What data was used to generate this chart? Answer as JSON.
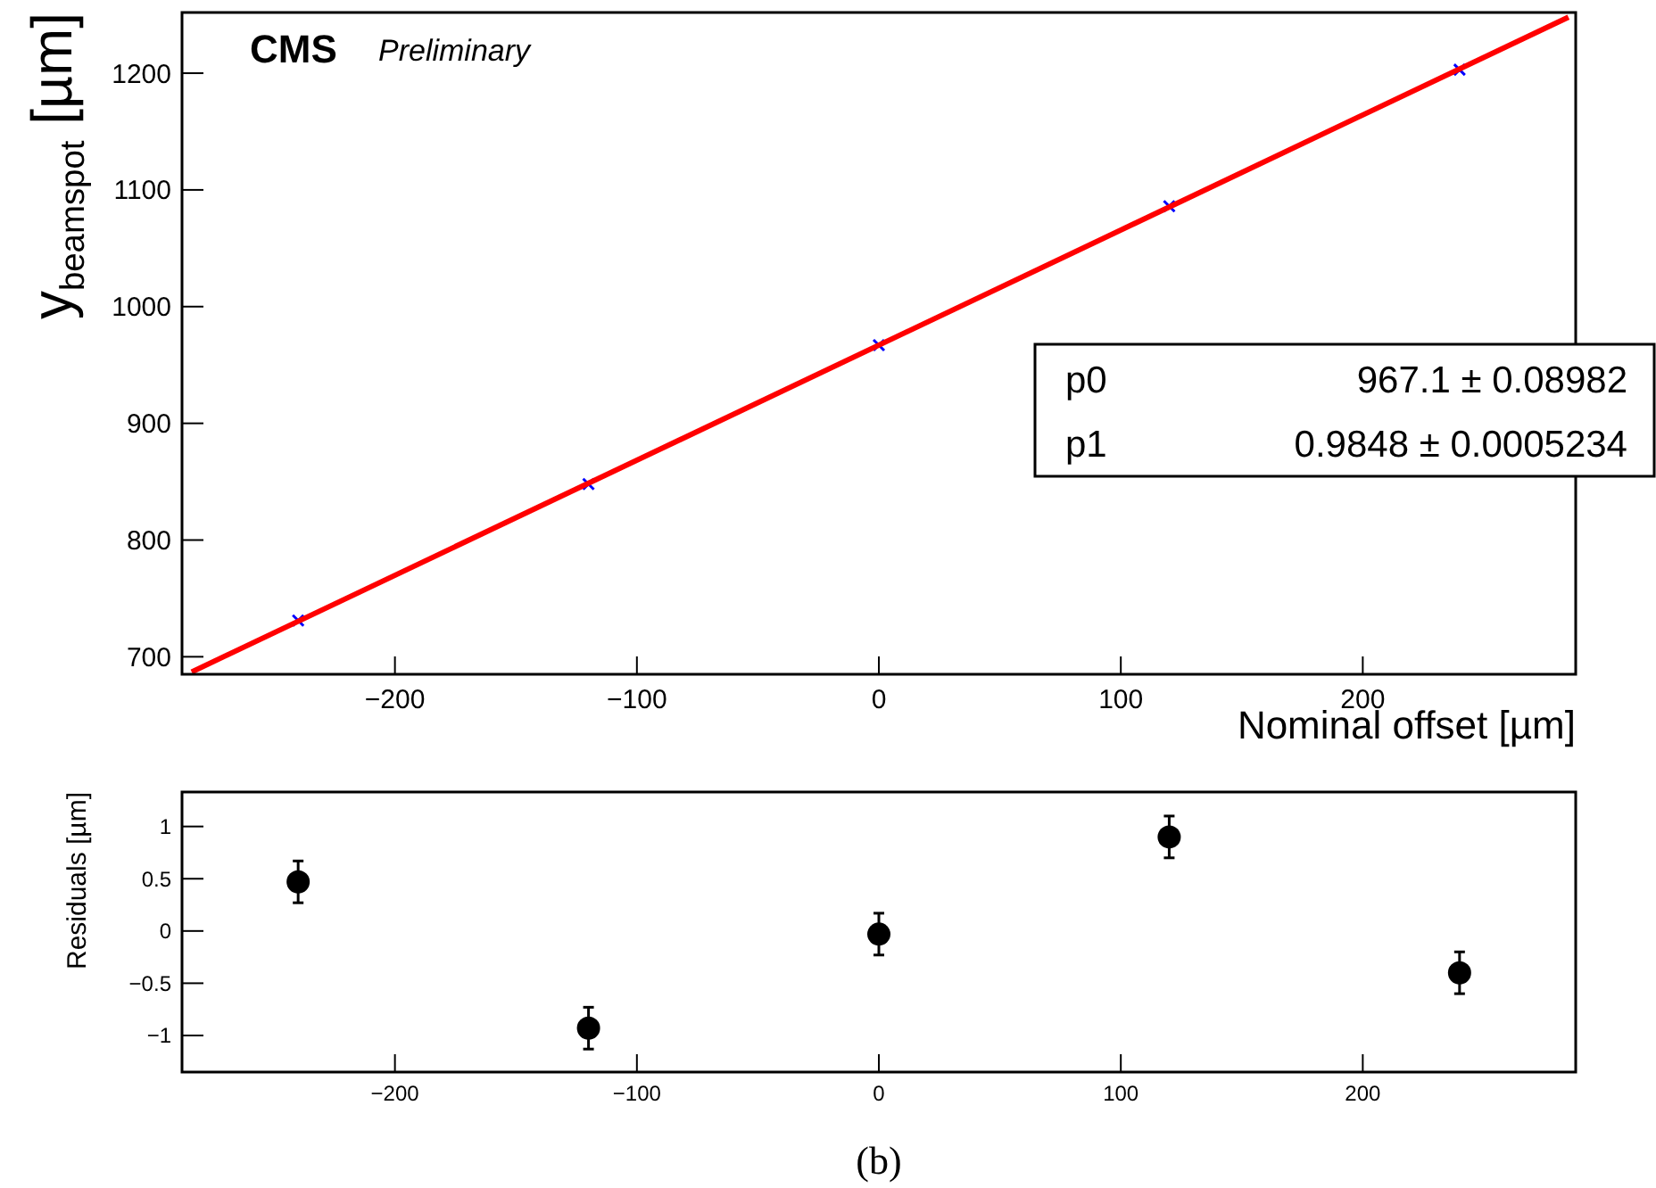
{
  "chart_data": [
    {
      "type": "scatter",
      "title": "CMS",
      "subtitle": "Preliminary",
      "xlabel": "Nominal offset [µm]",
      "ylabel": "y$_{beamspot}$ [µm]",
      "grid": false,
      "xlim": [
        -288,
        288
      ],
      "xticks": [
        -200,
        -100,
        0,
        100,
        200
      ],
      "ylim": [
        685,
        1252
      ],
      "yticks": [
        700,
        800,
        900,
        1000,
        1100,
        1200
      ],
      "x": [
        -240,
        -120,
        0,
        120,
        240
      ],
      "series": [
        {
          "color": "#0000ff",
          "marker": "cross",
          "values": [
            731,
            848,
            967,
            1086,
            1203
          ]
        },
        {
          "type": "line",
          "color": "#ff0000",
          "x": [
            -284,
            285
          ],
          "values": [
            687,
            1248
          ]
        }
      ],
      "annotations": [
        "p0",
        "967.1 ± 0.08982",
        "p1",
        "0.9848 ± 0.0005234"
      ]
    },
    {
      "type": "scatter",
      "ylabel": "Residuals [µm]",
      "marker": "circle",
      "grid": false,
      "xlim": [
        -288,
        288
      ],
      "xticks": [
        -200,
        -100,
        0,
        100,
        200
      ],
      "ylim": [
        -1.35,
        1.33
      ],
      "yticks": [
        -1,
        -0.5,
        0,
        0.5,
        1
      ],
      "x": [
        -240,
        -120,
        0,
        120,
        240
      ],
      "series": [
        {
          "color": "#000000",
          "values": [
            0.47,
            -0.93,
            -0.03,
            0.9,
            -0.4
          ],
          "errors": [
            0.2,
            0.2,
            0.2,
            0.2,
            0.2
          ]
        }
      ],
      "annotations": [
        "(b)"
      ]
    }
  ]
}
